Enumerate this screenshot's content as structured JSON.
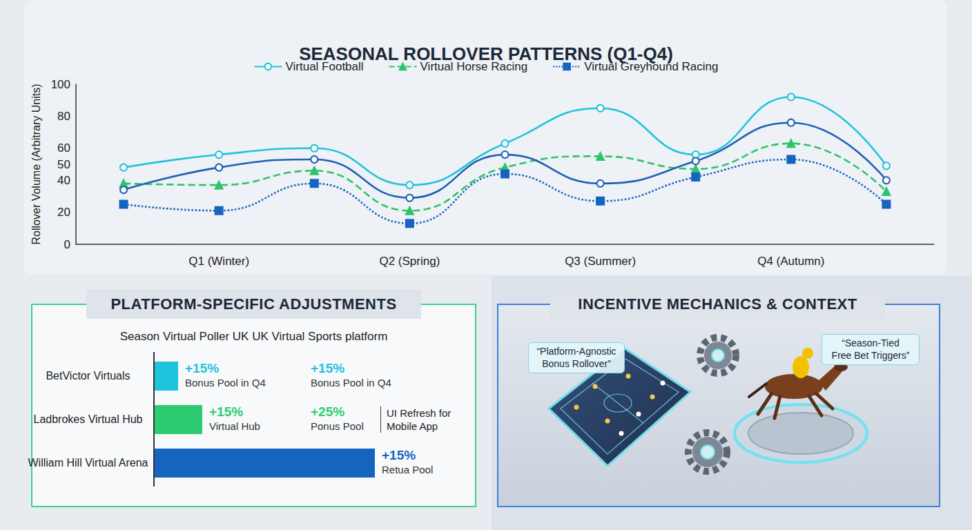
{
  "chart_data": {
    "type": "line",
    "title": "SEASONAL ROLLOVER PATTERNS (Q1-Q4)",
    "categories": [
      null,
      "Q1 (Winter)",
      null,
      "Q2 (Spring)",
      null,
      "Q3 (Summer)",
      null,
      "Q4 (Autumn)",
      null
    ],
    "series": [
      {
        "name": "Virtual Football",
        "color": "#1ec3dc",
        "marker": "circle",
        "line_style": "solid",
        "values": [
          48,
          56,
          60,
          37,
          63,
          85,
          56,
          92,
          49
        ]
      },
      {
        "name": "Virtual Horse Racing",
        "color": "#2ec46a",
        "marker": "triangle",
        "line_style": "dashed",
        "values": [
          38,
          37,
          46,
          21,
          48,
          55,
          47,
          63,
          33
        ]
      },
      {
        "name": "Virtual Greyhound Racing",
        "color": "#1565c0",
        "marker": "square",
        "line_style": "dotted",
        "values": [
          25,
          21,
          38,
          13,
          44,
          27,
          42,
          53,
          25
        ]
      },
      {
        "color": "#1f5fb4",
        "marker": "circle",
        "line_style": "solid",
        "values": [
          34,
          48,
          53,
          29,
          56,
          38,
          52,
          76,
          40
        ]
      }
    ],
    "y_label": "Rollover Volume (Arbitrary Units)",
    "ylim": [
      0,
      100
    ],
    "yticks": [
      0,
      20,
      40,
      50,
      60,
      80,
      100
    ],
    "grid": false,
    "legend": "top"
  },
  "platform_panel": {
    "title": "PLATFORM-SPECIFIC ADJUSTMENTS",
    "subtitle": "Season Virtual Poller UK UK Virtual Sports platform",
    "rows": [
      {
        "name": "BetVictor Virtuals",
        "color": "#1ec3dc",
        "notes": [
          {
            "value": "+15%",
            "text": "Bonus Pool in Q4"
          },
          {
            "value": "+15%",
            "text": "Bonus Pool in Q4"
          }
        ]
      },
      {
        "name": "Ladbrokes Virtual Hub",
        "color": "#2ecc71",
        "notes": [
          {
            "value": "+15%",
            "text": "Virtual Hub"
          },
          {
            "value": "+25%",
            "text": "Ponus Pool"
          }
        ],
        "extra": "UI Refresh for Mobile App"
      },
      {
        "name": "William Hill Virtual Arena",
        "color": "#1565c0",
        "notes": [
          {
            "value": "+15%",
            "text": "Retua Pool"
          }
        ]
      }
    ]
  },
  "incentive_panel": {
    "title": "INCENTIVE MECHANICS & CONTEXT",
    "callouts": [
      "“Platform-Agnostic Bonus Rollover”",
      "“Season-Tied Free Bet Triggers”"
    ]
  }
}
